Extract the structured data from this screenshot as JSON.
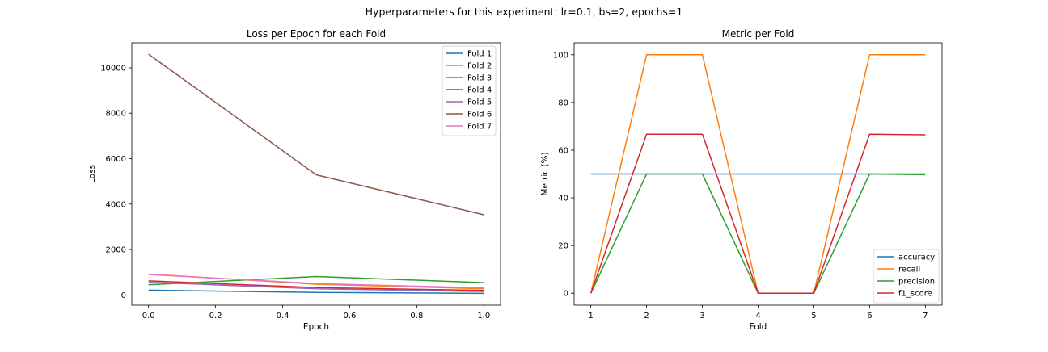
{
  "suptitle": "Hyperparameters for this experiment: lr=0.1, bs=2, epochs=1",
  "chart_data": [
    {
      "type": "line",
      "title": "Loss per Epoch for each Fold",
      "xlabel": "Epoch",
      "ylabel": "Loss",
      "xlim": [
        -0.05,
        1.05
      ],
      "ylim": [
        -450,
        11100
      ],
      "xticks": [
        0.0,
        0.2,
        0.4,
        0.6,
        0.8,
        1.0
      ],
      "xtick_labels": [
        "0.0",
        "0.2",
        "0.4",
        "0.6",
        "0.8",
        "1.0"
      ],
      "yticks": [
        0,
        2000,
        4000,
        6000,
        8000,
        10000
      ],
      "ytick_labels": [
        "0",
        "2000",
        "4000",
        "6000",
        "8000",
        "10000"
      ],
      "x": [
        0.0,
        0.5,
        1.0
      ],
      "legend": "top-right",
      "grid": false,
      "series": [
        {
          "name": "Fold 1",
          "color": "#1f77b4",
          "values": [
            210,
            110,
            70
          ]
        },
        {
          "name": "Fold 2",
          "color": "#ff7f0e",
          "values": [
            920,
            470,
            270
          ]
        },
        {
          "name": "Fold 3",
          "color": "#2ca02c",
          "values": [
            450,
            810,
            540
          ]
        },
        {
          "name": "Fold 4",
          "color": "#d62728",
          "values": [
            620,
            320,
            200
          ]
        },
        {
          "name": "Fold 5",
          "color": "#9467bd",
          "values": [
            560,
            270,
            150
          ]
        },
        {
          "name": "Fold 6",
          "color": "#8c564b",
          "values": [
            10600,
            5290,
            3530
          ]
        },
        {
          "name": "Fold 7",
          "color": "#e377c2",
          "values": [
            900,
            500,
            310
          ]
        }
      ]
    },
    {
      "type": "line",
      "title": "Metric per Fold",
      "xlabel": "Fold",
      "ylabel": "Metric (%)",
      "xlim": [
        0.7,
        7.3
      ],
      "ylim": [
        -5,
        105
      ],
      "xticks": [
        1,
        2,
        3,
        4,
        5,
        6,
        7
      ],
      "xtick_labels": [
        "1",
        "2",
        "3",
        "4",
        "5",
        "6",
        "7"
      ],
      "yticks": [
        0,
        20,
        40,
        60,
        80,
        100
      ],
      "ytick_labels": [
        "0",
        "20",
        "40",
        "60",
        "80",
        "100"
      ],
      "x": [
        1,
        2,
        3,
        4,
        5,
        6,
        7
      ],
      "legend": "bottom-right",
      "grid": false,
      "series": [
        {
          "name": "accuracy",
          "color": "#1f77b4",
          "values": [
            50,
            50,
            50,
            50,
            50,
            50,
            50
          ]
        },
        {
          "name": "recall",
          "color": "#ff7f0e",
          "values": [
            0,
            100,
            100,
            0,
            0,
            100,
            100
          ]
        },
        {
          "name": "precision",
          "color": "#2ca02c",
          "values": [
            0,
            50,
            50,
            0,
            0,
            50,
            49.7
          ]
        },
        {
          "name": "f1_score",
          "color": "#d62728",
          "values": [
            0,
            66.7,
            66.7,
            0,
            0,
            66.7,
            66.4
          ]
        }
      ]
    }
  ]
}
